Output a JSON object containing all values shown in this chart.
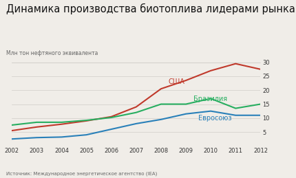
{
  "title": "Динамика производства биотоплива лидерами рынка",
  "subtitle": "Млн тон нефтяного эквивалента",
  "source": "Источник: Международное энергетическое агентство (IEA)",
  "years": [
    2002,
    2003,
    2004,
    2005,
    2006,
    2007,
    2008,
    2009,
    2010,
    2011,
    2012
  ],
  "usa": [
    5.5,
    6.8,
    7.8,
    9.0,
    10.5,
    14.0,
    20.5,
    23.5,
    27.0,
    29.5,
    27.5
  ],
  "brazil": [
    7.5,
    8.5,
    8.5,
    9.2,
    10.2,
    12.0,
    15.0,
    15.0,
    17.0,
    13.5,
    15.0
  ],
  "eu": [
    2.5,
    3.0,
    3.2,
    4.0,
    6.0,
    8.0,
    9.5,
    11.5,
    12.5,
    11.0,
    11.0
  ],
  "usa_color": "#c0392b",
  "brazil_color": "#27ae60",
  "eu_color": "#2980b9",
  "ylim": [
    0,
    30
  ],
  "yticks": [
    0,
    5,
    10,
    15,
    20,
    25,
    30
  ],
  "bg_color": "#f0ede8",
  "text_color": "#333333",
  "grid_color": "#d0ccc8",
  "label_usa": "США",
  "label_brazil": "Бразилия",
  "label_eu": "Евросоюз",
  "title_fontsize": 10.5,
  "subtitle_fontsize": 5.5,
  "tick_fontsize": 6.0,
  "label_fontsize": 7.0,
  "source_fontsize": 5.0
}
